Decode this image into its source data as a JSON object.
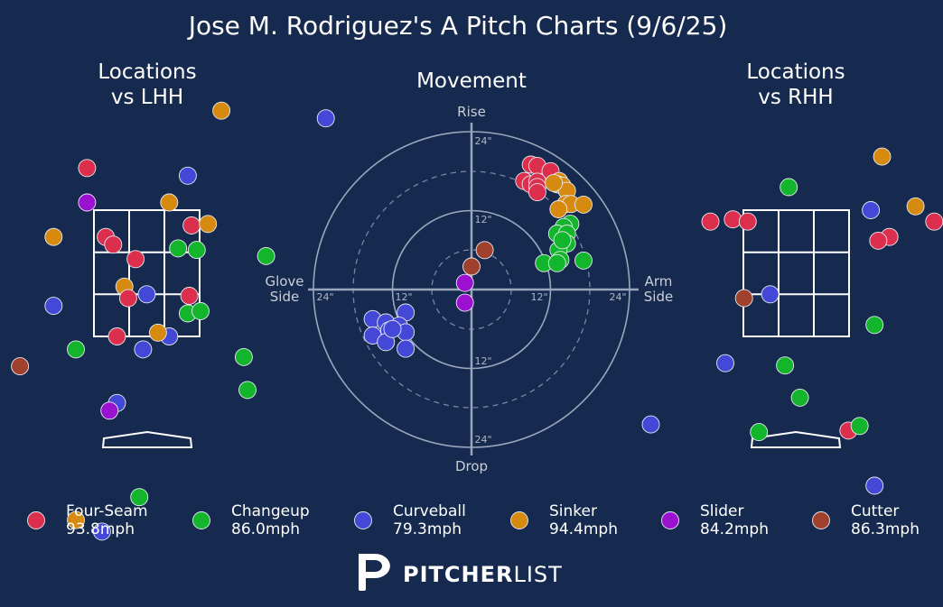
{
  "title": "Jose M. Rodriguez's A Pitch Charts (9/6/25)",
  "chart_data": [
    {
      "type": "scatter",
      "title_line1": "Locations",
      "title_line2": "vs LHH",
      "points": [
        {
          "pitch": "Sinker",
          "x": 1.0,
          "y": 4.6
        },
        {
          "pitch": "Curveball",
          "x": 2.4,
          "y": 4.5
        },
        {
          "pitch": "Four-Seam",
          "x": -0.8,
          "y": 3.85
        },
        {
          "pitch": "Curveball",
          "x": 0.55,
          "y": 3.75
        },
        {
          "pitch": "Slider",
          "x": -0.8,
          "y": 3.4
        },
        {
          "pitch": "Sinker",
          "x": 0.3,
          "y": 3.4
        },
        {
          "pitch": "Four-Seam",
          "x": 0.6,
          "y": 3.1
        },
        {
          "pitch": "Sinker",
          "x": 0.82,
          "y": 3.12
        },
        {
          "pitch": "Sinker",
          "x": -1.25,
          "y": 2.95
        },
        {
          "pitch": "Four-Seam",
          "x": -0.55,
          "y": 2.95
        },
        {
          "pitch": "Four-Seam",
          "x": -0.45,
          "y": 2.85
        },
        {
          "pitch": "Changeup",
          "x": 0.42,
          "y": 2.8
        },
        {
          "pitch": "Changeup",
          "x": 0.67,
          "y": 2.78
        },
        {
          "pitch": "Changeup",
          "x": 1.6,
          "y": 2.7
        },
        {
          "pitch": "Four-Seam",
          "x": -0.15,
          "y": 2.66
        },
        {
          "pitch": "Sinker",
          "x": -0.3,
          "y": 2.3
        },
        {
          "pitch": "Four-Seam",
          "x": -0.25,
          "y": 2.15
        },
        {
          "pitch": "Curveball",
          "x": 0.0,
          "y": 2.2
        },
        {
          "pitch": "Four-Seam",
          "x": 0.57,
          "y": 2.18
        },
        {
          "pitch": "Changeup",
          "x": 0.55,
          "y": 1.95
        },
        {
          "pitch": "Changeup",
          "x": 0.72,
          "y": 1.98
        },
        {
          "pitch": "Curveball",
          "x": -1.25,
          "y": 2.05
        },
        {
          "pitch": "Four-Seam",
          "x": -0.4,
          "y": 1.65
        },
        {
          "pitch": "Curveball",
          "x": 0.3,
          "y": 1.65
        },
        {
          "pitch": "Sinker",
          "x": 0.15,
          "y": 1.7
        },
        {
          "pitch": "Changeup",
          "x": -0.95,
          "y": 1.48
        },
        {
          "pitch": "Curveball",
          "x": -0.05,
          "y": 1.48
        },
        {
          "pitch": "Changeup",
          "x": 1.3,
          "y": 1.38
        },
        {
          "pitch": "Cutter",
          "x": -1.7,
          "y": 1.26
        },
        {
          "pitch": "Changeup",
          "x": 1.35,
          "y": 0.95
        },
        {
          "pitch": "Curveball",
          "x": -0.4,
          "y": 0.78
        },
        {
          "pitch": "Slider",
          "x": -0.5,
          "y": 0.68
        },
        {
          "pitch": "Changeup",
          "x": -0.1,
          "y": -0.45
        },
        {
          "pitch": "Sinker",
          "x": -0.95,
          "y": -0.75
        },
        {
          "pitch": "Curveball",
          "x": -0.6,
          "y": -0.9
        }
      ]
    },
    {
      "type": "scatter",
      "title": "Movement",
      "axis_top": "Rise",
      "axis_bottom": "Drop",
      "axis_left_line1": "Glove",
      "axis_left_line2": "Side",
      "axis_right_line1": "Arm",
      "axis_right_line2": "Side",
      "ring_label_12": "12\"",
      "ring_label_24": "24\"",
      "xlim": [
        -24,
        24
      ],
      "ylim": [
        -24,
        24
      ],
      "points": [
        {
          "pitch": "Four-Seam",
          "x": 9.0,
          "y": 19.0
        },
        {
          "pitch": "Four-Seam",
          "x": 10.0,
          "y": 18.8
        },
        {
          "pitch": "Four-Seam",
          "x": 12.0,
          "y": 18.0
        },
        {
          "pitch": "Four-Seam",
          "x": 8.0,
          "y": 16.5
        },
        {
          "pitch": "Four-Seam",
          "x": 9.0,
          "y": 16.0
        },
        {
          "pitch": "Four-Seam",
          "x": 10.0,
          "y": 16.4
        },
        {
          "pitch": "Four-Seam",
          "x": 10.0,
          "y": 15.6
        },
        {
          "pitch": "Four-Seam",
          "x": 10.0,
          "y": 14.8
        },
        {
          "pitch": "Sinker",
          "x": 13.3,
          "y": 16.5
        },
        {
          "pitch": "Sinker",
          "x": 13.0,
          "y": 16.0
        },
        {
          "pitch": "Sinker",
          "x": 13.8,
          "y": 15.8
        },
        {
          "pitch": "Sinker",
          "x": 14.5,
          "y": 15.0
        },
        {
          "pitch": "Sinker",
          "x": 12.5,
          "y": 16.2
        },
        {
          "pitch": "Sinker",
          "x": 14.3,
          "y": 13.0
        },
        {
          "pitch": "Sinker",
          "x": 15.1,
          "y": 13.0
        },
        {
          "pitch": "Sinker",
          "x": 17.0,
          "y": 12.9
        },
        {
          "pitch": "Sinker",
          "x": 13.2,
          "y": 12.2
        },
        {
          "pitch": "Changeup",
          "x": 15.0,
          "y": 10.0
        },
        {
          "pitch": "Changeup",
          "x": 14.0,
          "y": 9.5
        },
        {
          "pitch": "Changeup",
          "x": 13.0,
          "y": 8.5
        },
        {
          "pitch": "Changeup",
          "x": 14.5,
          "y": 8.5
        },
        {
          "pitch": "Changeup",
          "x": 14.5,
          "y": 7.0
        },
        {
          "pitch": "Changeup",
          "x": 13.2,
          "y": 6.0
        },
        {
          "pitch": "Changeup",
          "x": 13.5,
          "y": 4.5
        },
        {
          "pitch": "Changeup",
          "x": 17.0,
          "y": 4.4
        },
        {
          "pitch": "Changeup",
          "x": 11.0,
          "y": 4.0
        },
        {
          "pitch": "Changeup",
          "x": 13.0,
          "y": 4.0
        },
        {
          "pitch": "Changeup",
          "x": 13.8,
          "y": 7.5
        },
        {
          "pitch": "Cutter",
          "x": 2.0,
          "y": 6.0
        },
        {
          "pitch": "Cutter",
          "x": 0.0,
          "y": 3.5
        },
        {
          "pitch": "Slider",
          "x": -1.0,
          "y": 1.0
        },
        {
          "pitch": "Slider",
          "x": -1.0,
          "y": -2.0
        },
        {
          "pitch": "Curveball",
          "x": -15.0,
          "y": -4.5
        },
        {
          "pitch": "Curveball",
          "x": -13.0,
          "y": -5.0
        },
        {
          "pitch": "Curveball",
          "x": -10.0,
          "y": -3.5
        },
        {
          "pitch": "Curveball",
          "x": -11.0,
          "y": -5.5
        },
        {
          "pitch": "Curveball",
          "x": -12.5,
          "y": -6.2
        },
        {
          "pitch": "Curveball",
          "x": -15.0,
          "y": -7.0
        },
        {
          "pitch": "Curveball",
          "x": -13.0,
          "y": -8.0
        },
        {
          "pitch": "Curveball",
          "x": -10.0,
          "y": -6.5
        },
        {
          "pitch": "Curveball",
          "x": -10.0,
          "y": -9.0
        },
        {
          "pitch": "Curveball",
          "x": -12.0,
          "y": -6.0
        }
      ]
    },
    {
      "type": "scatter",
      "title_line1": "Locations",
      "title_line2": "vs RHH",
      "points": [
        {
          "pitch": "Sinker",
          "x": 1.15,
          "y": 4.0
        },
        {
          "pitch": "Changeup",
          "x": -0.1,
          "y": 3.6
        },
        {
          "pitch": "Curveball",
          "x": 1.0,
          "y": 3.3
        },
        {
          "pitch": "Sinker",
          "x": 1.6,
          "y": 3.35
        },
        {
          "pitch": "Four-Seam",
          "x": -1.15,
          "y": 3.15
        },
        {
          "pitch": "Four-Seam",
          "x": -0.85,
          "y": 3.18
        },
        {
          "pitch": "Four-Seam",
          "x": -0.65,
          "y": 3.15
        },
        {
          "pitch": "Four-Seam",
          "x": 1.25,
          "y": 2.95
        },
        {
          "pitch": "Four-Seam",
          "x": 1.1,
          "y": 2.9
        },
        {
          "pitch": "Four-Seam",
          "x": 1.85,
          "y": 3.15
        },
        {
          "pitch": "Curveball",
          "x": -0.35,
          "y": 2.2
        },
        {
          "pitch": "Cutter",
          "x": -0.7,
          "y": 2.15
        },
        {
          "pitch": "Changeup",
          "x": 1.05,
          "y": 1.8
        },
        {
          "pitch": "Curveball",
          "x": -0.95,
          "y": 1.3
        },
        {
          "pitch": "Changeup",
          "x": -0.15,
          "y": 1.27
        },
        {
          "pitch": "Changeup",
          "x": 0.05,
          "y": 0.85
        },
        {
          "pitch": "Curveball",
          "x": -1.95,
          "y": 0.5
        },
        {
          "pitch": "Changeup",
          "x": -0.5,
          "y": 0.4
        },
        {
          "pitch": "Four-Seam",
          "x": 0.7,
          "y": 0.42
        },
        {
          "pitch": "Changeup",
          "x": 0.85,
          "y": 0.48
        },
        {
          "pitch": "Curveball",
          "x": 1.05,
          "y": -0.3
        }
      ]
    }
  ],
  "legend": [
    {
      "name": "Four-Seam",
      "speed": "93.8mph",
      "color": "#dc2f4e"
    },
    {
      "name": "Changeup",
      "speed": "86.0mph",
      "color": "#13b52c"
    },
    {
      "name": "Curveball",
      "speed": "79.3mph",
      "color": "#4448d6"
    },
    {
      "name": "Sinker",
      "speed": "94.4mph",
      "color": "#d68a10"
    },
    {
      "name": "Slider",
      "speed": "84.2mph",
      "color": "#9a12cf"
    },
    {
      "name": "Cutter",
      "speed": "86.3mph",
      "color": "#a0412d"
    }
  ],
  "logo_bold": "PITCHER",
  "logo_light": "LIST"
}
